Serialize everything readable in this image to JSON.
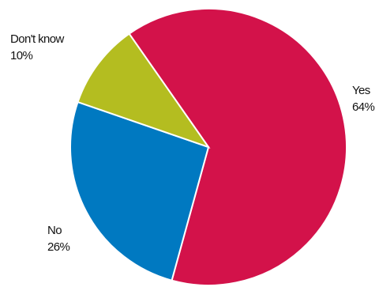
{
  "chart_data": {
    "type": "pie",
    "slices": [
      {
        "label": "Yes",
        "value": 64,
        "value_label": "64%",
        "color": "#D3124A"
      },
      {
        "label": "No",
        "value": 26,
        "value_label": "26%",
        "color": "#0079C1"
      },
      {
        "label": "Don't know",
        "value": 10,
        "value_label": "10%",
        "color": "#B4BD20"
      }
    ],
    "start": "top, clockwise",
    "legend": "none"
  }
}
